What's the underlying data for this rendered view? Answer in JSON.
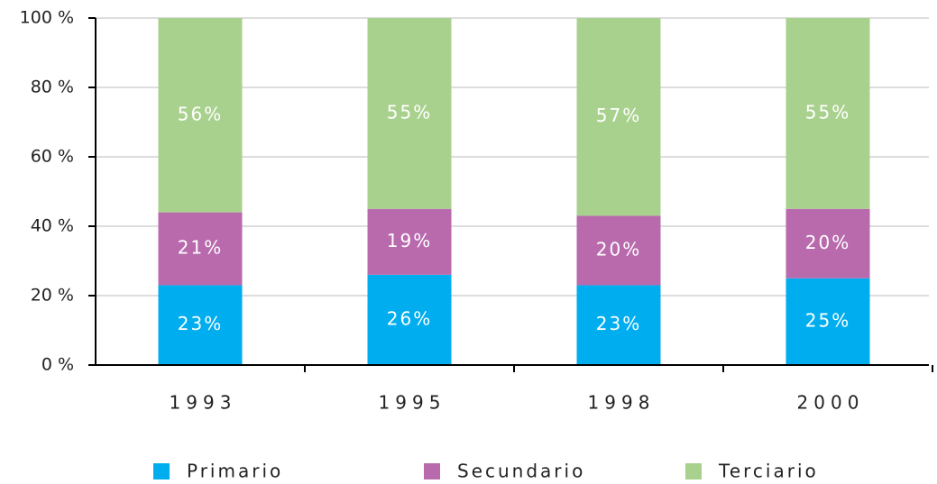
{
  "chart_data": {
    "type": "stacked_bar",
    "categories": [
      "1993",
      "1995",
      "1998",
      "2000"
    ],
    "series": [
      {
        "name": "Primario",
        "color": "#00adef",
        "values": [
          23,
          26,
          23,
          25
        ],
        "value_labels": [
          "23%",
          "26%",
          "23%",
          "25%"
        ]
      },
      {
        "name": "Secundario",
        "color": "#b86aad",
        "values": [
          21,
          19,
          20,
          20
        ],
        "value_labels": [
          "21%",
          "19%",
          "20%",
          "20%"
        ]
      },
      {
        "name": "Terciario",
        "color": "#a9d18e",
        "values": [
          56,
          55,
          57,
          55
        ],
        "value_labels": [
          "56%",
          "55%",
          "57%",
          "55%"
        ]
      }
    ],
    "ylim": [
      0,
      100
    ],
    "yticks": [
      {
        "value": 0,
        "label": "0 %"
      },
      {
        "value": 20,
        "label": "20 %"
      },
      {
        "value": 40,
        "label": "40 %"
      },
      {
        "value": 60,
        "label": "60 %"
      },
      {
        "value": 80,
        "label": "80 %"
      },
      {
        "value": 100,
        "label": "100 %"
      }
    ],
    "grid": true,
    "legend": "bottom"
  }
}
